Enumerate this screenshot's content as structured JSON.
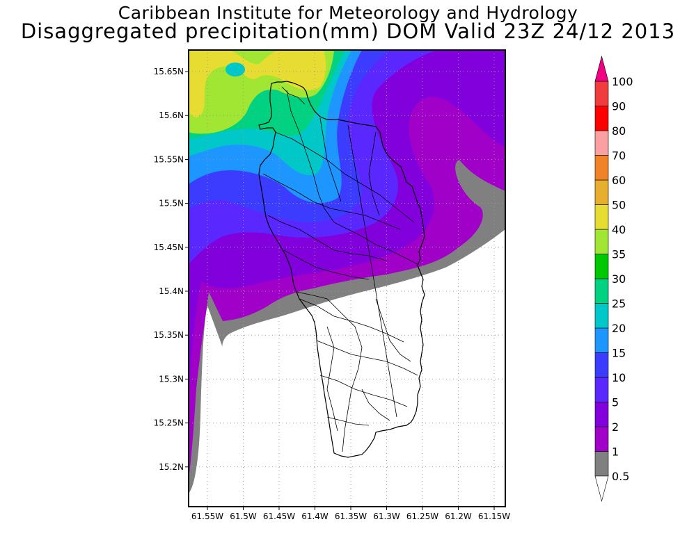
{
  "titles": {
    "line1": "Caribbean Institute for Meteorology and Hydrology",
    "line2": "Disaggregated precipitation(mm) DOM Valid 23Z 24/12 2013"
  },
  "map": {
    "lat_ticks": [
      "15.65N",
      "15.6N",
      "15.55N",
      "15.5N",
      "15.45N",
      "15.4N",
      "15.35N",
      "15.3N",
      "15.25N",
      "15.2N"
    ],
    "lon_ticks": [
      "61.55W",
      "61.5W",
      "61.45W",
      "61.4W",
      "61.35W",
      "61.3W",
      "61.25W",
      "61.2W",
      "61.15W"
    ],
    "gridlines": "dotted"
  },
  "colorbar": {
    "levels": [
      "0.5",
      "1",
      "2",
      "5",
      "10",
      "15",
      "20",
      "25",
      "30",
      "35",
      "40",
      "50",
      "60",
      "70",
      "80",
      "90",
      "100"
    ],
    "colors": [
      "#808080",
      "#a000c8",
      "#8200dc",
      "#5a28ff",
      "#3c3cff",
      "#1e96ff",
      "#00c8c8",
      "#00d282",
      "#00c800",
      "#a0e632",
      "#e6dc32",
      "#e6af2d",
      "#f08228",
      "#faa0a0",
      "#ff0000",
      "#f03c3c",
      "#f03c8c"
    ],
    "below_color": "#ffffff",
    "above_color": "#f00082"
  }
}
